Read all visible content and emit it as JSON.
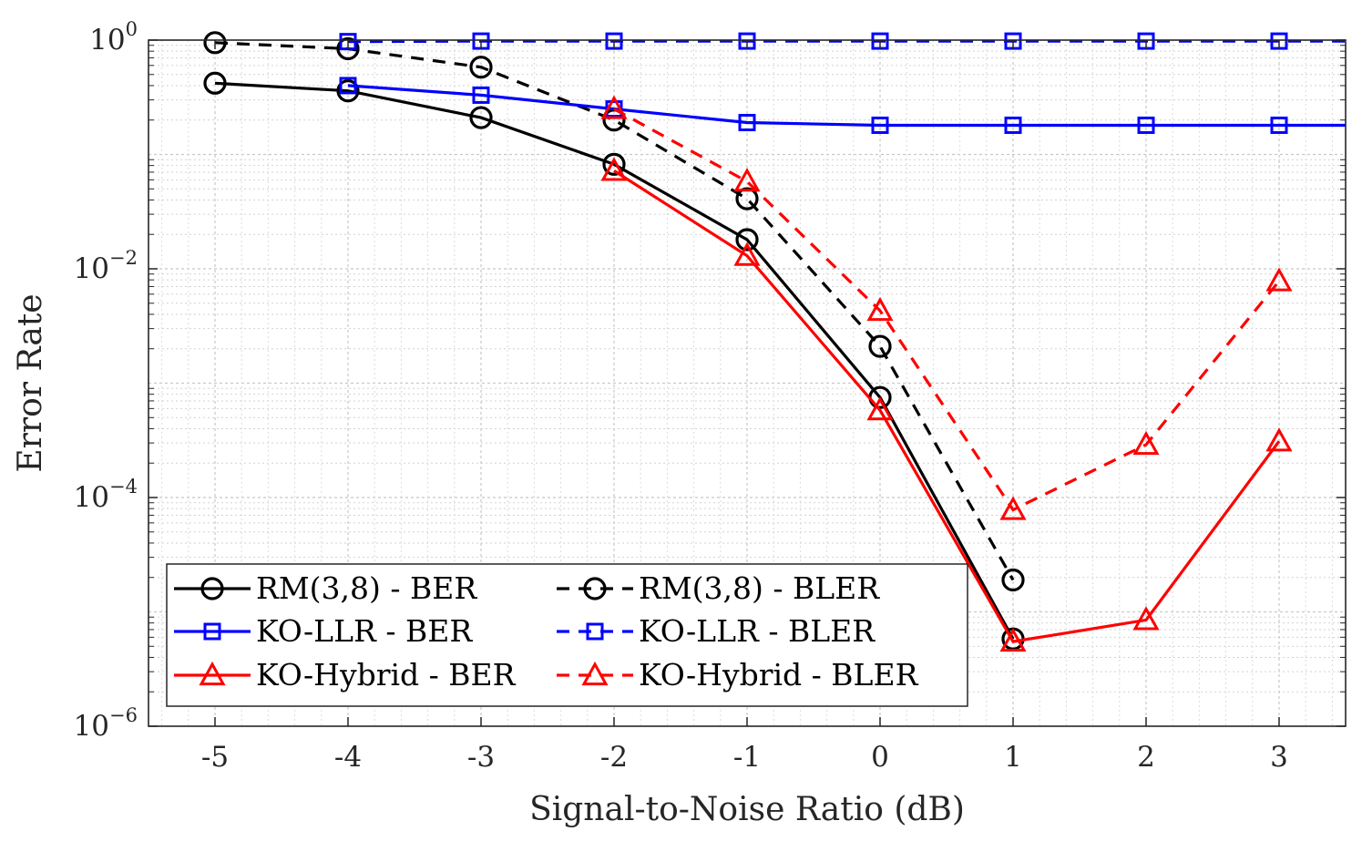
{
  "chart_data": {
    "type": "line",
    "title": "",
    "xlabel": "Signal-to-Noise Ratio (dB)",
    "ylabel": "Error Rate",
    "xlim": [
      -5.5,
      3.5
    ],
    "ylim": [
      1e-06,
      1
    ],
    "yscale": "log",
    "grid": true,
    "x_ticks": [
      -5,
      -4,
      -3,
      -2,
      -1,
      0,
      1,
      2,
      3
    ],
    "x_tick_labels": [
      "-5",
      "-4",
      "-3",
      "-2",
      "-1",
      "0",
      "1",
      "2",
      "3"
    ],
    "y_ticks": [
      {
        "value": 1,
        "base": "10",
        "exp": "0"
      },
      {
        "value": 0.01,
        "base": "10",
        "exp": "−2"
      },
      {
        "value": 0.0001,
        "base": "10",
        "exp": "−4"
      },
      {
        "value": 1e-06,
        "base": "10",
        "exp": "−6"
      }
    ],
    "legend_position": "bottom-left",
    "series": [
      {
        "name": "RM(3,8) - BER",
        "color": "#000000",
        "dash": "solid",
        "marker": "circle",
        "x": [
          -5,
          -4,
          -3,
          -2,
          -1,
          0,
          1
        ],
        "y": [
          0.42,
          0.36,
          0.21,
          0.082,
          0.018,
          0.00075,
          5.8e-06
        ]
      },
      {
        "name": "RM(3,8) - BLER",
        "color": "#000000",
        "dash": "dashed",
        "marker": "circle",
        "x": [
          -5,
          -4,
          -3,
          -2,
          -1,
          0,
          1
        ],
        "y": [
          0.95,
          0.84,
          0.58,
          0.2,
          0.041,
          0.0021,
          1.9e-05
        ]
      },
      {
        "name": "KO-LLR - BER",
        "color": "#0000ff",
        "dash": "solid",
        "marker": "square",
        "x": [
          -4,
          -3,
          -2,
          -1,
          0,
          1,
          2,
          3,
          3.5
        ],
        "y": [
          0.4,
          0.33,
          0.25,
          0.19,
          0.18,
          0.18,
          0.18,
          0.18,
          0.18
        ]
      },
      {
        "name": "KO-LLR - BLER",
        "color": "#0000ff",
        "dash": "dashed",
        "marker": "square",
        "x": [
          -4,
          -3,
          -2,
          -1,
          0,
          1,
          2,
          3,
          3.5
        ],
        "y": [
          0.97,
          0.98,
          0.98,
          0.98,
          0.98,
          0.98,
          0.98,
          0.98,
          0.98
        ]
      },
      {
        "name": "KO-Hybrid - BER",
        "color": "#ff0000",
        "dash": "solid",
        "marker": "triangle",
        "x": [
          -2,
          -1,
          0,
          1,
          2,
          3
        ],
        "y": [
          0.072,
          0.013,
          0.00058,
          5.5e-06,
          8.5e-06,
          0.00031
        ]
      },
      {
        "name": "KO-Hybrid - BLER",
        "color": "#ff0000",
        "dash": "dashed",
        "marker": "triangle",
        "x": [
          -2,
          -1,
          0,
          1,
          2,
          3
        ],
        "y": [
          0.25,
          0.058,
          0.0043,
          7.8e-05,
          0.00029,
          0.0078
        ]
      }
    ],
    "legend_order": [
      0,
      1,
      2,
      3,
      4,
      5
    ]
  }
}
